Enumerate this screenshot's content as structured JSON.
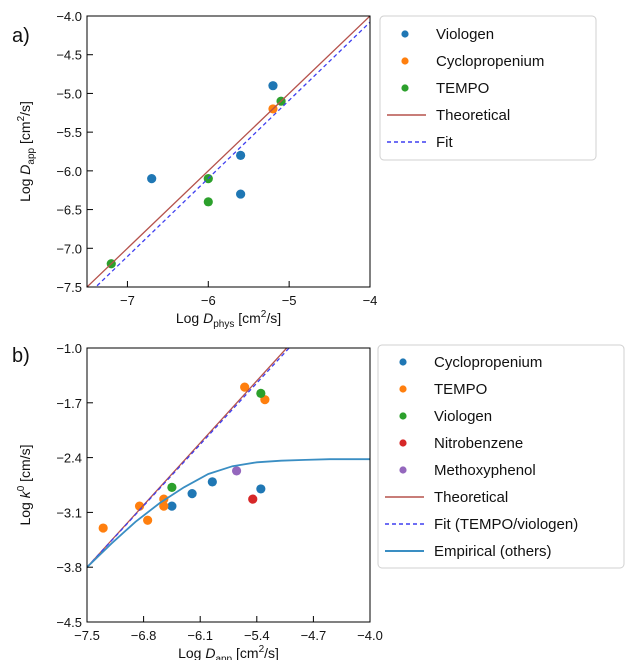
{
  "chart_data": [
    {
      "panel_label": "a)",
      "type": "scatter",
      "xlabel": {
        "base": "Log ",
        "var": "D",
        "sub": "phys",
        "unit": " [cm",
        "sup": "2",
        "unit2": "/s]"
      },
      "ylabel": {
        "base": "Log ",
        "var": "D",
        "sub": "app",
        "unit": " [cm",
        "sup": "2",
        "unit2": "/s]"
      },
      "xlim": [
        -7.5,
        -4.0
      ],
      "ylim": [
        -7.5,
        -4.0
      ],
      "xticks": [
        -7,
        -6,
        -5,
        -4
      ],
      "yticks": [
        -7.5,
        -7.0,
        -6.5,
        -6.0,
        -5.5,
        -5.0,
        -4.5,
        -4.0
      ],
      "xtick_labels": [
        "−7",
        "−6",
        "−5",
        "−4"
      ],
      "ytick_labels": [
        "−7.5",
        "−7.0",
        "−6.5",
        "−6.0",
        "−5.5",
        "−5.0",
        "−4.5",
        "−4.0"
      ],
      "grid": false,
      "legend_position": "outside-right",
      "series": [
        {
          "name": "Viologen",
          "kind": "scatter",
          "color": "#1f77b4",
          "x": [
            -6.7,
            -5.6,
            -5.6,
            -5.2
          ],
          "y": [
            -6.1,
            -5.8,
            -6.3,
            -4.9
          ]
        },
        {
          "name": "Cyclopropenium",
          "kind": "scatter",
          "color": "#ff7f0e",
          "x": [
            -5.2
          ],
          "y": [
            -5.2
          ]
        },
        {
          "name": "TEMPO",
          "kind": "scatter",
          "color": "#2ca02c",
          "x": [
            -7.2,
            -6.0,
            -6.0,
            -5.1
          ],
          "y": [
            -7.2,
            -6.1,
            -6.4,
            -5.1
          ]
        },
        {
          "name": "Theoretical",
          "kind": "line",
          "color": "#b5524c",
          "dash": "",
          "x": [
            -7.5,
            -4.0
          ],
          "y": [
            -7.5,
            -4.0
          ]
        },
        {
          "name": "Fit",
          "kind": "line",
          "color": "#3f3ff0",
          "dash": "4,3",
          "x": [
            -7.5,
            -4.0
          ],
          "y": [
            -7.61,
            -4.08
          ]
        }
      ]
    },
    {
      "panel_label": "b)",
      "type": "scatter",
      "xlabel": {
        "base": "Log ",
        "var": "D",
        "sub": "app",
        "unit": " [cm",
        "sup": "2",
        "unit2": "/s]"
      },
      "ylabel": {
        "base": "Log ",
        "var": "k",
        "sup0": "0",
        "unit": " [cm/s]"
      },
      "xlim": [
        -7.5,
        -4.0
      ],
      "ylim": [
        -4.5,
        -1.0
      ],
      "xticks": [
        -7.5,
        -6.8,
        -6.1,
        -5.4,
        -4.7,
        -4.0
      ],
      "yticks": [
        -4.5,
        -3.8,
        -3.1,
        -2.4,
        -1.7,
        -1.0
      ],
      "xtick_labels": [
        "−7.5",
        "−6.8",
        "−6.1",
        "−5.4",
        "−4.7",
        "−4.0"
      ],
      "ytick_labels": [
        "−4.5",
        "−3.8",
        "−3.1",
        "−2.4",
        "−1.7",
        "−1.0"
      ],
      "grid": false,
      "legend_position": "outside-right",
      "series": [
        {
          "name": "Cyclopropenium",
          "kind": "scatter",
          "color": "#1f77b4",
          "x": [
            -6.45,
            -6.2,
            -5.95,
            -5.35
          ],
          "y": [
            -3.02,
            -2.86,
            -2.71,
            -2.8
          ]
        },
        {
          "name": "TEMPO",
          "kind": "scatter",
          "color": "#ff7f0e",
          "x": [
            -7.3,
            -6.85,
            -6.75,
            -6.55,
            -6.55,
            -5.55,
            -5.3
          ],
          "y": [
            -3.3,
            -3.02,
            -3.2,
            -2.93,
            -3.02,
            -1.5,
            -1.66
          ]
        },
        {
          "name": "Viologen",
          "kind": "scatter",
          "color": "#2ca02c",
          "x": [
            -6.45,
            -5.35
          ],
          "y": [
            -2.78,
            -1.58
          ]
        },
        {
          "name": "Nitrobenzene",
          "kind": "scatter",
          "color": "#d62728",
          "x": [
            -5.45
          ],
          "y": [
            -2.93
          ]
        },
        {
          "name": "Methoxyphenol",
          "kind": "scatter",
          "color": "#9467bd",
          "x": [
            -5.65
          ],
          "y": [
            -2.57
          ]
        },
        {
          "name": "Theoretical",
          "kind": "line",
          "color": "#b5524c",
          "dash": "",
          "x": [
            -7.5,
            -5.03
          ],
          "y": [
            -3.8,
            -1.0
          ]
        },
        {
          "name": "Fit (TEMPO/viologen)",
          "kind": "line",
          "color": "#3f3ff0",
          "dash": "4,3",
          "x": [
            -7.5,
            -5.0
          ],
          "y": [
            -3.8,
            -1.0
          ]
        },
        {
          "name": "Empirical (others)",
          "kind": "curve",
          "color": "#3a8ec3",
          "dash": "",
          "x": [
            -7.5,
            -7.2,
            -6.9,
            -6.6,
            -6.3,
            -6.0,
            -5.7,
            -5.4,
            -5.1,
            -4.8,
            -4.5,
            -4.2,
            -4.0
          ],
          "y": [
            -3.8,
            -3.5,
            -3.22,
            -2.98,
            -2.78,
            -2.61,
            -2.51,
            -2.46,
            -2.44,
            -2.43,
            -2.42,
            -2.42,
            -2.42
          ]
        }
      ]
    }
  ]
}
